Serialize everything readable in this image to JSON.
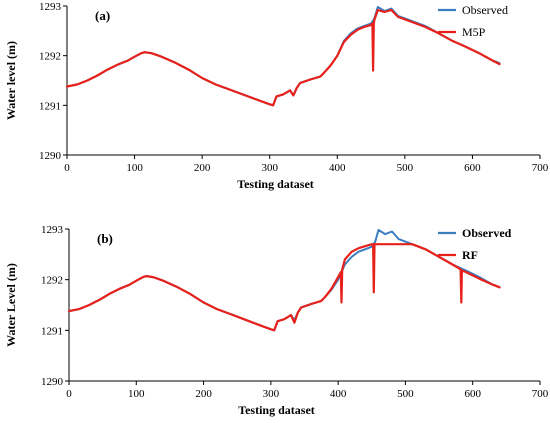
{
  "chart_data": [
    {
      "type": "line",
      "panel_label": "(a)",
      "xlabel": "Testing dataset",
      "ylabel": "Water level (m)",
      "xlim": [
        0,
        700
      ],
      "ylim": [
        1290,
        1293
      ],
      "xticks": [
        0,
        100,
        200,
        300,
        400,
        500,
        600,
        700
      ],
      "yticks": [
        1290,
        1291,
        1292,
        1293
      ],
      "legend_position": "top-right",
      "legend_bold": false,
      "series": [
        {
          "name": "Observed",
          "color": "#3B7DBF",
          "x": [
            0,
            15,
            30,
            45,
            60,
            75,
            90,
            100,
            110,
            115,
            125,
            140,
            160,
            180,
            200,
            220,
            240,
            260,
            280,
            300,
            305,
            310,
            320,
            330,
            335,
            340,
            345,
            360,
            375,
            380,
            390,
            400,
            410,
            420,
            430,
            440,
            450,
            455,
            460,
            470,
            480,
            490,
            510,
            530,
            550,
            570,
            590,
            610,
            630,
            640
          ],
          "y": [
            1291.38,
            1291.42,
            1291.5,
            1291.6,
            1291.72,
            1291.82,
            1291.9,
            1291.98,
            1292.05,
            1292.07,
            1292.05,
            1291.98,
            1291.86,
            1291.72,
            1291.55,
            1291.42,
            1291.32,
            1291.22,
            1291.12,
            1291.02,
            1291.0,
            1291.18,
            1291.22,
            1291.3,
            1291.2,
            1291.35,
            1291.45,
            1291.52,
            1291.58,
            1291.65,
            1291.8,
            1292.0,
            1292.3,
            1292.45,
            1292.55,
            1292.6,
            1292.65,
            1292.75,
            1292.98,
            1292.9,
            1292.95,
            1292.8,
            1292.7,
            1292.6,
            1292.45,
            1292.3,
            1292.18,
            1292.05,
            1291.9,
            1291.85
          ]
        },
        {
          "name": "M5P",
          "color": "#E8201A",
          "x": [
            0,
            15,
            30,
            45,
            60,
            75,
            90,
            100,
            110,
            115,
            125,
            140,
            160,
            180,
            200,
            220,
            240,
            260,
            280,
            300,
            305,
            310,
            320,
            330,
            335,
            340,
            345,
            360,
            375,
            380,
            390,
            400,
            410,
            420,
            430,
            440,
            450,
            452,
            453,
            454,
            455,
            460,
            470,
            480,
            490,
            510,
            530,
            550,
            570,
            590,
            610,
            630,
            640
          ],
          "y": [
            1291.38,
            1291.42,
            1291.5,
            1291.6,
            1291.72,
            1291.82,
            1291.9,
            1291.98,
            1292.05,
            1292.07,
            1292.05,
            1291.98,
            1291.86,
            1291.72,
            1291.55,
            1291.42,
            1291.32,
            1291.22,
            1291.12,
            1291.02,
            1291.0,
            1291.18,
            1291.22,
            1291.3,
            1291.2,
            1291.35,
            1291.45,
            1291.52,
            1291.58,
            1291.65,
            1291.8,
            1292.0,
            1292.28,
            1292.42,
            1292.52,
            1292.58,
            1292.62,
            1292.65,
            1291.7,
            1292.65,
            1292.72,
            1292.92,
            1292.88,
            1292.92,
            1292.78,
            1292.68,
            1292.58,
            1292.45,
            1292.3,
            1292.18,
            1292.05,
            1291.9,
            1291.83
          ]
        }
      ]
    },
    {
      "type": "line",
      "panel_label": "(b)",
      "xlabel": "Testing dataset",
      "ylabel": "Water Level (m)",
      "xlim": [
        0,
        700
      ],
      "ylim": [
        1290,
        1293
      ],
      "xticks": [
        0,
        100,
        200,
        300,
        400,
        500,
        600,
        700
      ],
      "yticks": [
        1290,
        1291,
        1292,
        1293
      ],
      "legend_position": "top-right",
      "legend_bold": true,
      "series": [
        {
          "name": "Observed",
          "color": "#3B7DBF",
          "x": [
            0,
            15,
            30,
            45,
            60,
            75,
            90,
            100,
            110,
            115,
            125,
            140,
            160,
            180,
            200,
            220,
            240,
            260,
            280,
            300,
            305,
            310,
            320,
            330,
            335,
            340,
            345,
            360,
            375,
            380,
            390,
            400,
            410,
            420,
            430,
            440,
            450,
            455,
            460,
            470,
            480,
            490,
            510,
            530,
            550,
            570,
            590,
            610,
            630,
            640
          ],
          "y": [
            1291.38,
            1291.42,
            1291.5,
            1291.6,
            1291.72,
            1291.82,
            1291.9,
            1291.98,
            1292.05,
            1292.07,
            1292.05,
            1291.98,
            1291.86,
            1291.72,
            1291.55,
            1291.42,
            1291.32,
            1291.22,
            1291.12,
            1291.02,
            1291.0,
            1291.18,
            1291.22,
            1291.3,
            1291.2,
            1291.35,
            1291.45,
            1291.52,
            1291.58,
            1291.65,
            1291.8,
            1292.0,
            1292.3,
            1292.45,
            1292.55,
            1292.6,
            1292.65,
            1292.75,
            1292.98,
            1292.9,
            1292.95,
            1292.8,
            1292.7,
            1292.6,
            1292.45,
            1292.3,
            1292.18,
            1292.05,
            1291.9,
            1291.85
          ]
        },
        {
          "name": "RF",
          "color": "#E8201A",
          "x": [
            0,
            15,
            30,
            45,
            60,
            75,
            90,
            100,
            110,
            115,
            125,
            140,
            160,
            180,
            200,
            220,
            240,
            260,
            280,
            300,
            305,
            310,
            320,
            330,
            335,
            340,
            345,
            360,
            375,
            380,
            390,
            400,
            404,
            405,
            406,
            410,
            420,
            430,
            440,
            450,
            452,
            453,
            454,
            460,
            470,
            490,
            510,
            530,
            550,
            570,
            580,
            582,
            583,
            584,
            590,
            610,
            630,
            640
          ],
          "y": [
            1291.38,
            1291.42,
            1291.5,
            1291.6,
            1291.72,
            1291.82,
            1291.9,
            1291.98,
            1292.05,
            1292.07,
            1292.05,
            1291.98,
            1291.86,
            1291.72,
            1291.55,
            1291.42,
            1291.32,
            1291.22,
            1291.12,
            1291.02,
            1291.0,
            1291.18,
            1291.22,
            1291.3,
            1291.15,
            1291.35,
            1291.45,
            1291.52,
            1291.58,
            1291.65,
            1291.82,
            1292.05,
            1292.15,
            1291.55,
            1292.2,
            1292.4,
            1292.55,
            1292.62,
            1292.66,
            1292.7,
            1292.7,
            1291.75,
            1292.7,
            1292.7,
            1292.7,
            1292.7,
            1292.7,
            1292.6,
            1292.45,
            1292.3,
            1292.22,
            1292.2,
            1291.55,
            1292.18,
            1292.15,
            1292.02,
            1291.9,
            1291.85
          ]
        }
      ]
    }
  ]
}
